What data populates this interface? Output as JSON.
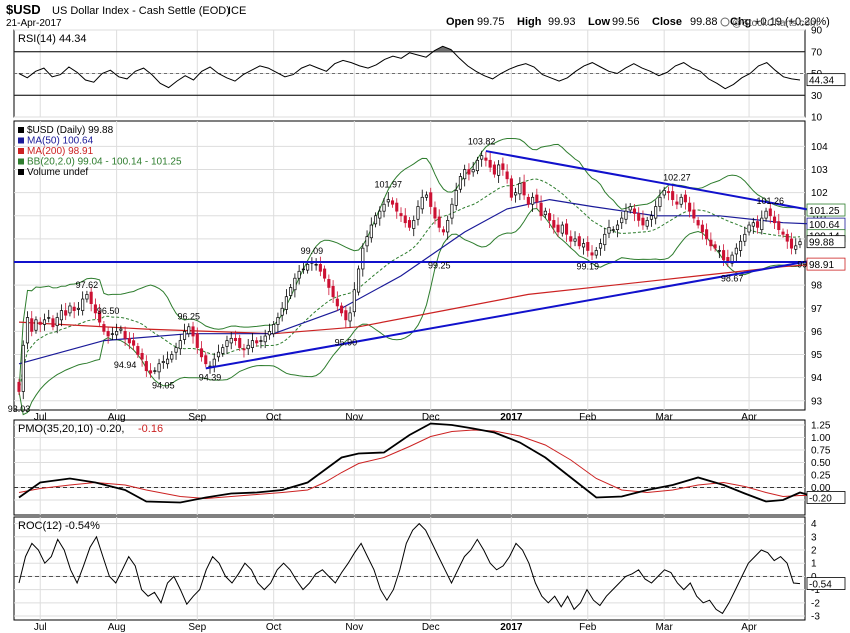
{
  "header": {
    "symbol": "$USD",
    "name": "US Dollar Index - Cash Settle (EOD)",
    "exchange": "ICE",
    "date": "21-Apr-2017",
    "watermark": "@StockCharts.com",
    "ohlc": [
      {
        "label": "Open",
        "value": "99.75"
      },
      {
        "label": "High",
        "value": "99.93"
      },
      {
        "label": "Low",
        "value": "99.56"
      },
      {
        "label": "Close",
        "value": "99.88"
      },
      {
        "label": "Chg",
        "value": "+0.19 (+0.20%)"
      }
    ]
  },
  "colors": {
    "up": "#000000",
    "down": "#cc1133",
    "ma50": "#1a1a99",
    "ma200": "#cc2222",
    "bb": "#2e7d2e",
    "trend": "#1111cc",
    "rsi_fill": "#707070",
    "grid": "#dddddd"
  },
  "chart_data": [
    {
      "panel": "rsi",
      "type": "line",
      "indicator_label": "RSI(14) 44.34",
      "last_value": "44.34",
      "ylim": [
        10,
        90
      ],
      "yticks": [
        "90",
        "70",
        "50",
        "30",
        "10"
      ],
      "reference_lines": [
        70,
        30
      ],
      "values": [
        50,
        46,
        52,
        55,
        47,
        49,
        56,
        51,
        44,
        42,
        50,
        53,
        47,
        45,
        52,
        55,
        49,
        41,
        37,
        43,
        48,
        44,
        52,
        56,
        50,
        46,
        43,
        49,
        53,
        57,
        55,
        51,
        47,
        49,
        55,
        58,
        55,
        52,
        59,
        62,
        60,
        57,
        55,
        58,
        63,
        66,
        64,
        69,
        67,
        65,
        71,
        75,
        72,
        64,
        57,
        52,
        48,
        45,
        50,
        54,
        57,
        59,
        56,
        49,
        46,
        43,
        46,
        52,
        57,
        60,
        56,
        52,
        50,
        55,
        59,
        55,
        52,
        48,
        51,
        57,
        60,
        55,
        52,
        45,
        41,
        36,
        40,
        46,
        50,
        57,
        60,
        53,
        47,
        45,
        44
      ]
    },
    {
      "panel": "price",
      "type": "candlestick",
      "legend": [
        {
          "text": "$USD (Daily) 99.88",
          "key": "up"
        },
        {
          "text": "MA(50) 100.64",
          "key": "ma50"
        },
        {
          "text": "MA(200) 98.91",
          "key": "ma200"
        },
        {
          "text": "BB(20,2.0) 99.04 - 100.14 - 101.25",
          "key": "bb"
        },
        {
          "text": "Volume undef",
          "key": "up"
        }
      ],
      "ylim": [
        92.6,
        105.1
      ],
      "yticks": [
        "104",
        "103",
        "102",
        "101",
        "100",
        "99",
        "98",
        "97",
        "96",
        "95",
        "94",
        "93"
      ],
      "right_labels": [
        {
          "value": 101.25,
          "text": "101.25"
        },
        {
          "value": 100.64,
          "text": "100.64"
        },
        {
          "value": 100.14,
          "text": "100.14"
        },
        {
          "value": 99.88,
          "text": "99.88"
        },
        {
          "value": 98.91,
          "text": "98.91"
        }
      ],
      "x_labels": [
        {
          "i": 5,
          "text": "Jul"
        },
        {
          "i": 23,
          "text": "Aug"
        },
        {
          "i": 42,
          "text": "Sep"
        },
        {
          "i": 60,
          "text": "Oct"
        },
        {
          "i": 79,
          "text": "Nov"
        },
        {
          "i": 97,
          "text": "Dec"
        },
        {
          "i": 116,
          "text": "2017"
        },
        {
          "i": 134,
          "text": "Feb"
        },
        {
          "i": 152,
          "text": "Mar"
        },
        {
          "i": 172,
          "text": "Apr"
        }
      ],
      "close": [
        93.4,
        95.4,
        96.6,
        96.0,
        96.5,
        96.3,
        96.5,
        96.6,
        96.2,
        96.6,
        96.9,
        96.7,
        97.1,
        96.9,
        97.0,
        97.4,
        97.6,
        97.2,
        96.8,
        96.4,
        96.0,
        95.8,
        95.9,
        96.0,
        96.1,
        95.7,
        95.5,
        95.4,
        95.0,
        94.8,
        94.3,
        94.2,
        94.3,
        94.6,
        94.7,
        94.8,
        95.0,
        95.3,
        95.6,
        96.0,
        96.2,
        95.8,
        95.3,
        94.9,
        94.6,
        94.5,
        94.8,
        95.1,
        95.3,
        95.6,
        95.7,
        95.6,
        95.3,
        95.2,
        95.4,
        95.6,
        95.5,
        95.6,
        95.8,
        96.0,
        96.3,
        96.6,
        97.0,
        97.5,
        97.9,
        98.3,
        98.6,
        98.7,
        98.9,
        99.0,
        98.9,
        98.6,
        98.3,
        97.9,
        97.5,
        97.1,
        96.8,
        96.5,
        96.8,
        97.8,
        98.7,
        99.6,
        100.1,
        100.6,
        101.0,
        101.2,
        101.5,
        101.7,
        101.5,
        101.2,
        101.0,
        100.7,
        100.5,
        100.8,
        101.4,
        101.8,
        101.9,
        101.4,
        100.9,
        100.5,
        100.3,
        100.8,
        101.5,
        102.1,
        102.7,
        103.0,
        102.8,
        103.0,
        103.4,
        103.6,
        103.4,
        103.1,
        102.8,
        103.2,
        103.0,
        102.6,
        101.8,
        102.0,
        102.4,
        101.9,
        101.5,
        101.8,
        101.6,
        101.0,
        101.2,
        100.8,
        100.5,
        100.3,
        100.6,
        100.2,
        99.9,
        100.0,
        99.7,
        99.8,
        99.5,
        99.3,
        99.5,
        99.8,
        100.2,
        100.5,
        100.4,
        100.6,
        100.9,
        101.2,
        101.4,
        101.1,
        100.8,
        100.6,
        100.8,
        101.0,
        101.4,
        101.8,
        102.1,
        102.0,
        101.7,
        101.5,
        101.8,
        101.6,
        101.2,
        100.9,
        100.6,
        100.3,
        100.0,
        99.7,
        99.6,
        99.5,
        99.1,
        99.0,
        99.3,
        99.6,
        99.9,
        100.2,
        100.6,
        100.7,
        100.5,
        100.9,
        101.2,
        101.0,
        100.7,
        100.4,
        100.2,
        99.9,
        99.6,
        99.7,
        99.88
      ],
      "ma50_points": [
        [
          0,
          94.6
        ],
        [
          20,
          95.6
        ],
        [
          40,
          95.9
        ],
        [
          60,
          95.9
        ],
        [
          75,
          96.9
        ],
        [
          90,
          98.4
        ],
        [
          105,
          100.3
        ],
        [
          115,
          101.3
        ],
        [
          125,
          101.7
        ],
        [
          135,
          101.4
        ],
        [
          150,
          101.0
        ],
        [
          165,
          101.0
        ],
        [
          180,
          100.7
        ],
        [
          188,
          100.64
        ]
      ],
      "ma200_points": [
        [
          0,
          96.4
        ],
        [
          30,
          96.1
        ],
        [
          60,
          95.9
        ],
        [
          80,
          96.2
        ],
        [
          100,
          96.9
        ],
        [
          120,
          97.6
        ],
        [
          140,
          98.0
        ],
        [
          160,
          98.4
        ],
        [
          180,
          98.8
        ],
        [
          188,
          98.91
        ]
      ],
      "bb_window": 20,
      "bb_k": 2,
      "trendlines": [
        {
          "from": [
            0,
            99.0
          ],
          "to": [
            188,
            99.0
          ]
        },
        {
          "from": [
            44,
            94.4
          ],
          "to": [
            188,
            99.1
          ]
        },
        {
          "from": [
            110,
            103.8
          ],
          "to": [
            188,
            101.2
          ]
        }
      ],
      "annotations": [
        {
          "i": 0,
          "value": 93.03,
          "text": "93.03",
          "pos": "below"
        },
        {
          "i": 16,
          "value": 97.62,
          "text": "97.62",
          "pos": "above"
        },
        {
          "i": 21,
          "value": 96.5,
          "text": "96.50",
          "pos": "above"
        },
        {
          "i": 25,
          "value": 94.94,
          "text": "94.94",
          "pos": "below"
        },
        {
          "i": 34,
          "value": 94.05,
          "text": "94.05",
          "pos": "below"
        },
        {
          "i": 40,
          "value": 96.25,
          "text": "96.25",
          "pos": "above"
        },
        {
          "i": 45,
          "value": 94.39,
          "text": "94.39",
          "pos": "below"
        },
        {
          "i": 69,
          "value": 99.09,
          "text": "99.09",
          "pos": "above"
        },
        {
          "i": 77,
          "value": 95.9,
          "text": "95.90",
          "pos": "below"
        },
        {
          "i": 87,
          "value": 101.97,
          "text": "101.97",
          "pos": "above"
        },
        {
          "i": 99,
          "value": 99.25,
          "text": "99.25",
          "pos": "below"
        },
        {
          "i": 109,
          "value": 103.82,
          "text": "103.82",
          "pos": "above"
        },
        {
          "i": 134,
          "value": 99.19,
          "text": "99.19",
          "pos": "below"
        },
        {
          "i": 155,
          "value": 102.27,
          "text": "102.27",
          "pos": "above"
        },
        {
          "i": 168,
          "value": 98.67,
          "text": "98.67",
          "pos": "below"
        },
        {
          "i": 177,
          "value": 101.26,
          "text": "101.26",
          "pos": "above"
        },
        {
          "i": 186,
          "value": 99.29,
          "text": "99.29",
          "pos": "below"
        }
      ]
    },
    {
      "panel": "pmo",
      "type": "line",
      "indicator_label": "PMO(35,20,10) -0.20,",
      "signal_label": "-0.16",
      "last_value": "-0.20",
      "ylim": [
        -0.55,
        1.35
      ],
      "yticks": [
        "1.25",
        "1.00",
        "0.75",
        "0.50",
        "0.25",
        "0.00",
        "-0.25"
      ],
      "x_points": [
        0,
        5,
        12,
        18,
        25,
        30,
        38,
        44,
        50,
        56,
        62,
        68,
        72,
        76,
        80,
        86,
        92,
        97,
        102,
        107,
        112,
        118,
        124,
        130,
        136,
        142,
        148,
        154,
        160,
        166,
        171,
        176,
        180,
        184,
        188
      ],
      "pmo": [
        -0.2,
        0.1,
        0.18,
        0.1,
        -0.05,
        -0.28,
        -0.3,
        -0.2,
        -0.12,
        -0.1,
        -0.05,
        0.1,
        0.35,
        0.6,
        0.68,
        0.7,
        1.05,
        1.28,
        1.25,
        1.18,
        1.1,
        0.9,
        0.6,
        0.2,
        -0.2,
        -0.18,
        -0.05,
        0.05,
        0.2,
        0.05,
        -0.12,
        -0.28,
        -0.25,
        -0.1,
        -0.2
      ],
      "signal": [
        -0.1,
        -0.02,
        0.05,
        0.1,
        0.05,
        -0.05,
        -0.18,
        -0.22,
        -0.18,
        -0.14,
        -0.1,
        -0.05,
        0.1,
        0.3,
        0.48,
        0.6,
        0.82,
        1.02,
        1.12,
        1.15,
        1.13,
        1.03,
        0.85,
        0.55,
        0.18,
        -0.05,
        -0.1,
        -0.05,
        0.05,
        0.1,
        0.02,
        -0.1,
        -0.18,
        -0.16,
        -0.16
      ]
    },
    {
      "panel": "roc",
      "type": "line",
      "indicator_label": "ROC(12) -0.54%",
      "last_value": "-0.54",
      "ylim": [
        -3.3,
        4.5
      ],
      "yticks": [
        "4",
        "3",
        "2",
        "1",
        "0",
        "-1",
        "-2",
        "-3"
      ],
      "x_labels": [
        "Jul",
        "Aug",
        "Sep",
        "Oct",
        "Nov",
        "Dec",
        "2017",
        "Feb",
        "Mar",
        "Apr"
      ],
      "values": [
        -0.5,
        1.5,
        2.5,
        2.0,
        1.0,
        1.5,
        2.8,
        2.0,
        0.5,
        -0.5,
        0.8,
        2.2,
        3.0,
        1.5,
        0.0,
        -0.5,
        0.5,
        1.5,
        0.8,
        -1.0,
        -1.5,
        -1.2,
        -2.0,
        -0.5,
        0.0,
        -1.0,
        -2.1,
        -1.5,
        -1.0,
        0.5,
        1.5,
        1.0,
        0.0,
        -0.5,
        0.2,
        1.0,
        0.5,
        -0.5,
        -1.0,
        -0.5,
        0.5,
        1.0,
        0.5,
        -0.3,
        -1.0,
        -0.5,
        0.2,
        0.5,
        0.0,
        -0.5,
        0.3,
        1.0,
        1.8,
        2.5,
        1.5,
        0.5,
        -1.0,
        -1.8,
        -1.0,
        0.5,
        2.5,
        3.5,
        4.0,
        3.5,
        2.5,
        1.5,
        0.5,
        -0.5,
        0.5,
        1.5,
        2.0,
        2.8,
        2.0,
        1.0,
        0.5,
        0.8,
        1.5,
        2.5,
        2.0,
        1.0,
        -0.5,
        -1.5,
        -2.0,
        -1.5,
        -2.3,
        -1.5,
        -2.5,
        -2.0,
        -1.0,
        -1.8,
        -2.2,
        -1.5,
        -1.0,
        -0.5,
        0.0,
        0.2,
        0.5,
        -0.2,
        -0.5,
        0.0,
        0.5,
        0.3,
        -0.5,
        -1.0,
        -0.5,
        -1.5,
        -2.0,
        -1.8,
        -2.5,
        -2.8,
        -2.0,
        -1.0,
        0.0,
        1.0,
        1.5,
        2.0,
        1.8,
        1.2,
        1.5,
        1.0,
        -0.5,
        -0.54
      ]
    }
  ]
}
